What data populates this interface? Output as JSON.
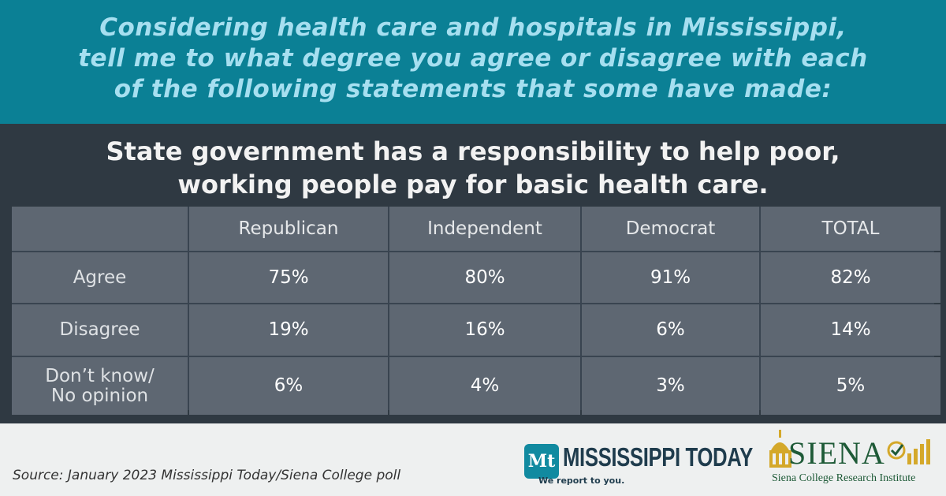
{
  "header": {
    "question": [
      "Considering health care and hospitals in Mississippi,",
      "tell me to what degree you agree or disagree with each",
      "of the following statements that some have made:"
    ]
  },
  "headline": [
    "State government has a responsibility to help poor,",
    "working people pay for basic health care."
  ],
  "table": {
    "columns": [
      "Republican",
      "Independent",
      "Democrat",
      "TOTAL"
    ],
    "rows": [
      {
        "label": [
          "Agree"
        ],
        "cells": [
          "75%",
          "80%",
          "91%",
          "82%"
        ]
      },
      {
        "label": [
          "Disagree"
        ],
        "cells": [
          "19%",
          "16%",
          "6%",
          "14%"
        ]
      },
      {
        "label": [
          "Don’t know/",
          "No opinion"
        ],
        "cells": [
          "6%",
          "4%",
          "3%",
          "5%"
        ]
      }
    ]
  },
  "footer": {
    "source": "Source: January 2023 Mississippi Today/Siena College poll",
    "logo_mt": {
      "icon": "Mt",
      "name": "MISSISSIPPI TODAY",
      "tagline": "We report to you."
    },
    "logo_siena": {
      "name": "SIENA",
      "subtitle": "Siena College Research Institute"
    }
  }
}
